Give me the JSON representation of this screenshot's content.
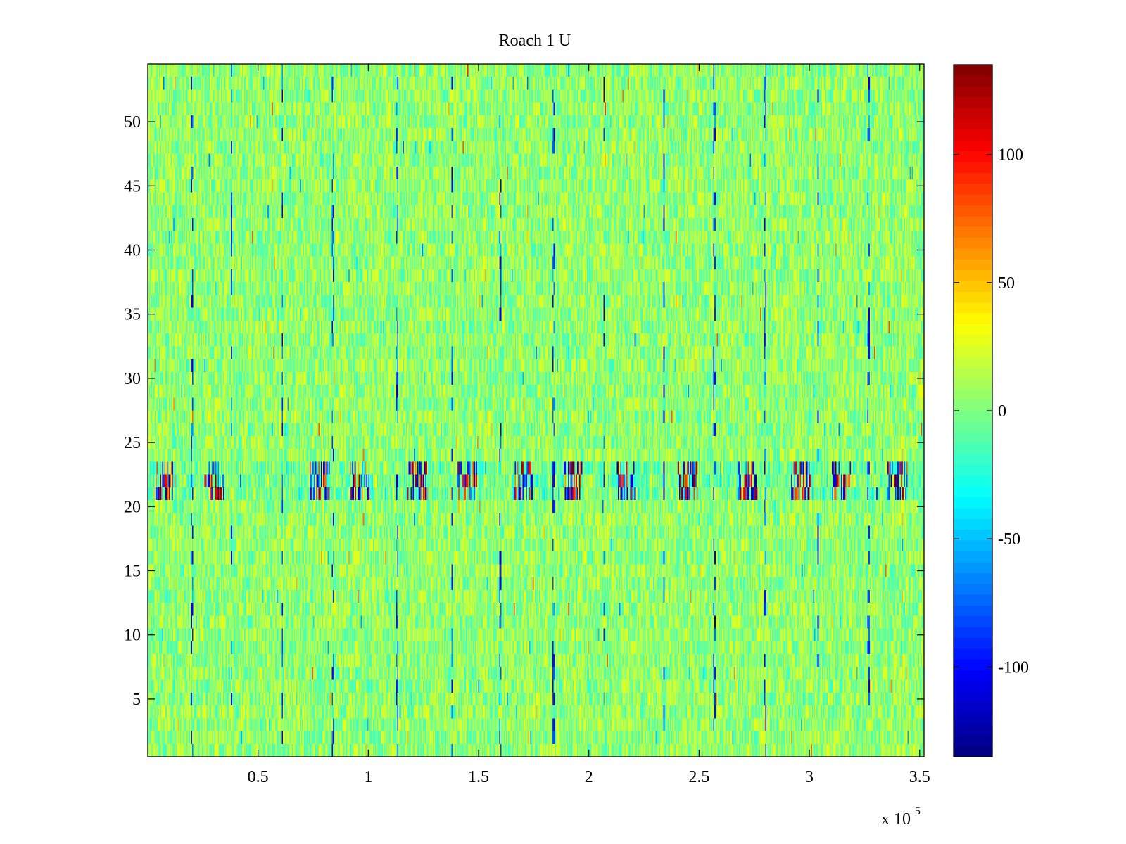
{
  "chart_data": {
    "type": "heatmap",
    "title": "Roach 1 U",
    "xlabel": "",
    "ylabel": "",
    "x_exponent_label": "x 10",
    "x_exponent_power": "5",
    "xlim": [
      0,
      3.52
    ],
    "ylim": [
      0.5,
      54.5
    ],
    "rows": 54,
    "x_ticks": [
      0.5,
      1,
      1.5,
      2,
      2.5,
      3,
      3.5
    ],
    "x_tick_labels": [
      "0.5",
      "1",
      "1.5",
      "2",
      "2.5",
      "3",
      "3.5"
    ],
    "y_ticks": [
      5,
      10,
      15,
      20,
      25,
      30,
      35,
      40,
      45,
      50
    ],
    "y_tick_labels": [
      "5",
      "10",
      "15",
      "20",
      "25",
      "30",
      "35",
      "40",
      "45",
      "50"
    ],
    "colorbar": {
      "colormap": "jet",
      "range": [
        -135,
        135
      ],
      "ticks": [
        100,
        50,
        0,
        -50,
        -100
      ],
      "tick_labels": [
        "100",
        "50",
        "0",
        "-50",
        "-100"
      ]
    },
    "background_level": 5,
    "background_noise_amplitude": 25,
    "high_activity_rows": [
      21,
      22,
      23
    ],
    "high_activity_burst_centers": [
      0.08,
      0.3,
      0.78,
      0.96,
      1.22,
      1.45,
      1.7,
      1.93,
      2.17,
      2.45,
      2.72,
      2.96,
      3.15,
      3.4
    ],
    "high_activity_burst_width": 0.09,
    "high_activity_amplitude": 135,
    "negative_spike_columns": [
      0.2,
      0.38,
      0.61,
      0.84,
      1.13,
      1.38,
      1.6,
      1.84,
      2.07,
      2.34,
      2.57,
      2.8,
      3.04,
      3.27
    ]
  }
}
